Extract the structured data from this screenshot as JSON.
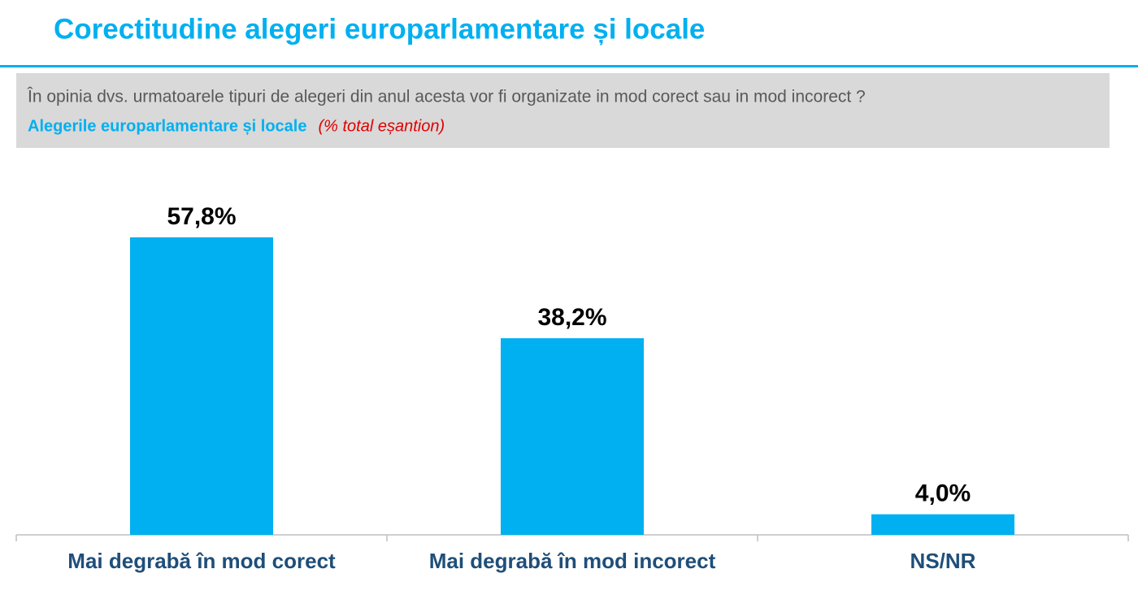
{
  "chart_data": {
    "type": "bar",
    "title": "Corectitudine alegeri europarlamentare și locale",
    "question": "În opinia dvs. urmatoarele tipuri de alegeri din anul acesta vor fi organizate in mod corect sau in mod incorect ?",
    "subject": "Alegerile europarlamentare și locale",
    "unit_note": "(% total eșantion)",
    "categories": [
      "Mai degrabă în mod corect",
      "Mai degrabă în mod incorect",
      "NS/NR"
    ],
    "values": [
      57.8,
      38.2,
      4.0
    ],
    "value_labels": [
      "57,8%",
      "38,2%",
      "4,0%"
    ],
    "color": "#00b0f0"
  }
}
